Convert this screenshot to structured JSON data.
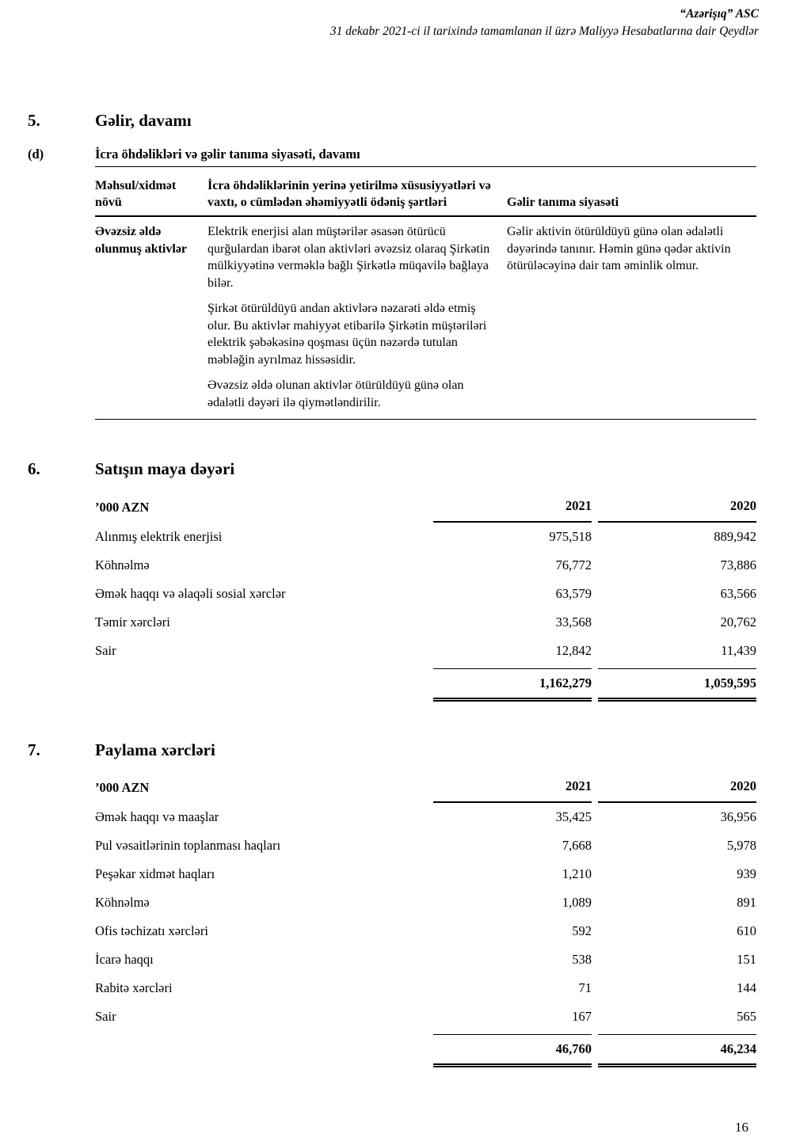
{
  "page_header": {
    "company": "“Azərişıq” ASC",
    "subtitle": "31 dekabr 2021-ci il tarixində tamamlanan il üzrə Maliyyə Hesabatlarına dair Qeydlər"
  },
  "section5": {
    "number": "5.",
    "title": "Gəlir, davamı",
    "sub_number": "(d)",
    "sub_title": "İcra öhdəlikləri və gəlir tanıma siyasəti, davamı",
    "table": {
      "col_product": "Məhsul/xidmət növü",
      "col_performance": "İcra öhdəliklərinin yerinə yetirilmə xüsusiyyətləri və vaxtı, o cümlədən əhəmiyyətli ödəniş şərtləri",
      "col_policy": "Gəlir tanıma siyasəti",
      "product": "Əvəzsiz əldə olunmuş aktivlər",
      "performance": [
        "Elektrik enerjisi alan müştərilər əsasən ötürücü qurğulardan ibarət olan aktivləri əvəzsiz olaraq Şirkətin mülkiyyətinə verməklə bağlı Şirkətlə müqavilə bağlaya bilər.",
        "Şirkət ötürüldüyü andan aktivlərə nəzarəti əldə etmiş olur. Bu aktivlər mahiyyət etibarilə Şirkətin müştəriləri elektrik şəbəkəsinə qoşması üçün nəzərdə tutulan məbləğin ayrılmaz hissəsidir.",
        "Əvəzsiz əldə olunan aktivlər ötürüldüyü günə olan ədalətli dəyəri ilə qiymətləndirilir."
      ],
      "policy": "Gəlir aktivin ötürüldüyü günə olan ədalətli dəyərində tanınır. Həmin günə qədər aktivin ötürüləcəyinə dair tam əminlik olmur."
    }
  },
  "section6": {
    "number": "6.",
    "title": "Satışın maya dəyəri",
    "unit": "’000 AZN",
    "year1": "2021",
    "year2": "2020",
    "rows": [
      {
        "label": "Alınmış elektrik enerjisi",
        "v1": "975,518",
        "v2": "889,942"
      },
      {
        "label": "Köhnəlmə",
        "v1": "76,772",
        "v2": "73,886"
      },
      {
        "label": "Əmək haqqı və əlaqəli sosial xərclər",
        "v1": "63,579",
        "v2": "63,566"
      },
      {
        "label": "Təmir xərcləri",
        "v1": "33,568",
        "v2": "20,762"
      },
      {
        "label": "Sair",
        "v1": "12,842",
        "v2": "11,439"
      }
    ],
    "total": {
      "v1": "1,162,279",
      "v2": "1,059,595"
    }
  },
  "section7": {
    "number": "7.",
    "title": "Paylama xərcləri",
    "unit": "’000 AZN",
    "year1": "2021",
    "year2": "2020",
    "rows": [
      {
        "label": "Əmək haqqı və maaşlar",
        "v1": "35,425",
        "v2": "36,956"
      },
      {
        "label": "Pul vəsaitlərinin toplanması haqları",
        "v1": "7,668",
        "v2": "5,978"
      },
      {
        "label": "Peşəkar xidmət haqları",
        "v1": "1,210",
        "v2": "939"
      },
      {
        "label": "Köhnəlmə",
        "v1": "1,089",
        "v2": "891"
      },
      {
        "label": "Ofis təchizatı xərcləri",
        "v1": "592",
        "v2": "610"
      },
      {
        "label": "İcarə haqqı",
        "v1": "538",
        "v2": "151"
      },
      {
        "label": "Rabitə xərcləri",
        "v1": "71",
        "v2": "144"
      },
      {
        "label": "Sair",
        "v1": "167",
        "v2": "565"
      }
    ],
    "total": {
      "v1": "46,760",
      "v2": "46,234"
    }
  },
  "footer": {
    "page_number": "16"
  }
}
